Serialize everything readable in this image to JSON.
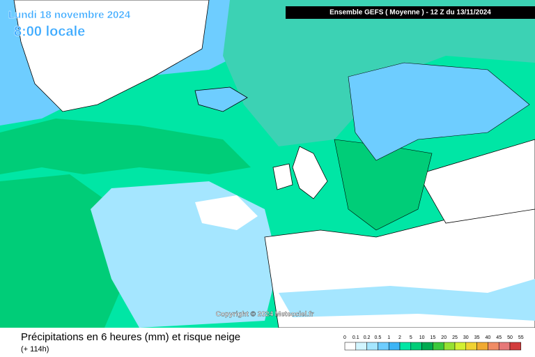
{
  "header": {
    "date": "Lundi 18 novembre 2024",
    "time": "8:00 locale",
    "model": "Ensemble GEFS  ( Moyenne )  - 12 Z du 13/11/2024"
  },
  "copyright": "Copyright © 2024 Meteociel.fr",
  "footer": {
    "title": "Précipitations en 6 heures (mm) et risque neige",
    "lead": "(+ 114h)"
  },
  "legend": {
    "labels": [
      "0",
      "0.1",
      "0.2",
      "0.5",
      "1",
      "2",
      "5",
      "10",
      "15",
      "20",
      "25",
      "30",
      "35",
      "40",
      "45",
      "50",
      "55"
    ],
    "colors": [
      "#ffffff",
      "#d2f5ff",
      "#a5e6ff",
      "#6ecdff",
      "#3cb4f5",
      "#00e6a5",
      "#00cd78",
      "#00aa50",
      "#3cc83c",
      "#96e132",
      "#d2f032",
      "#f0d232",
      "#f0aa32",
      "#f08c64",
      "#e67878",
      "#d23c3c"
    ]
  }
}
